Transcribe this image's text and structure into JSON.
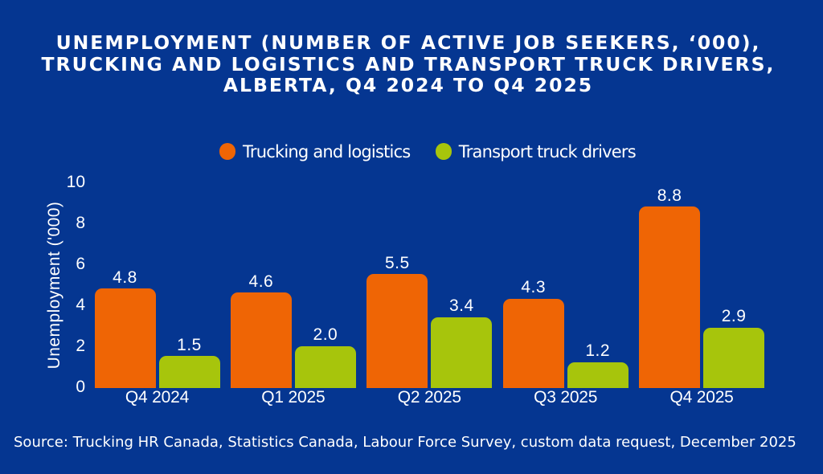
{
  "colors": {
    "background": "#053691",
    "text": "#FFFFFF",
    "orange": "#EF6505",
    "green": "#A7C50C"
  },
  "chart_data": {
    "type": "bar",
    "title_lines": [
      "UNEMPLOYMENT (NUMBER OF ACTIVE JOB SEEKERS, ‘000),",
      "TRUCKING AND LOGISTICS AND TRANSPORT TRUCK DRIVERS,",
      "ALBERTA, Q4 2024 TO Q4 2025"
    ],
    "title": "UNEMPLOYMENT (NUMBER OF ACTIVE JOB SEEKERS, ‘000), TRUCKING AND LOGISTICS AND TRANSPORT TRUCK DRIVERS, ALBERTA, Q4 2024 TO Q4 2025",
    "categories": [
      "Q4 2024",
      "Q1 2025",
      "Q2 2025",
      "Q3 2025",
      "Q4 2025"
    ],
    "series": [
      {
        "name": "Trucking and logistics",
        "color": "#EF6505",
        "values": [
          4.8,
          4.6,
          5.5,
          4.3,
          8.8
        ]
      },
      {
        "name": "Transport truck drivers",
        "color": "#A7C50C",
        "values": [
          1.5,
          2.0,
          3.4,
          1.2,
          2.9
        ]
      }
    ],
    "value_labels": [
      [
        "4.8",
        "4.6",
        "5.5",
        "4.3",
        "8.8"
      ],
      [
        "1.5",
        "2.0",
        "3.4",
        "1.2",
        "2.9"
      ]
    ],
    "xlabel": "",
    "ylabel": "Unemployment ('000)",
    "ylim": [
      0,
      10
    ],
    "yticks": [
      "0",
      "2",
      "4",
      "6",
      "8",
      "10"
    ],
    "grid": false,
    "legend_position": "top"
  },
  "source": {
    "text": "Source: Trucking HR Canada, Statistics Canada, Labour Force Survey, custom data request, December 2025"
  }
}
